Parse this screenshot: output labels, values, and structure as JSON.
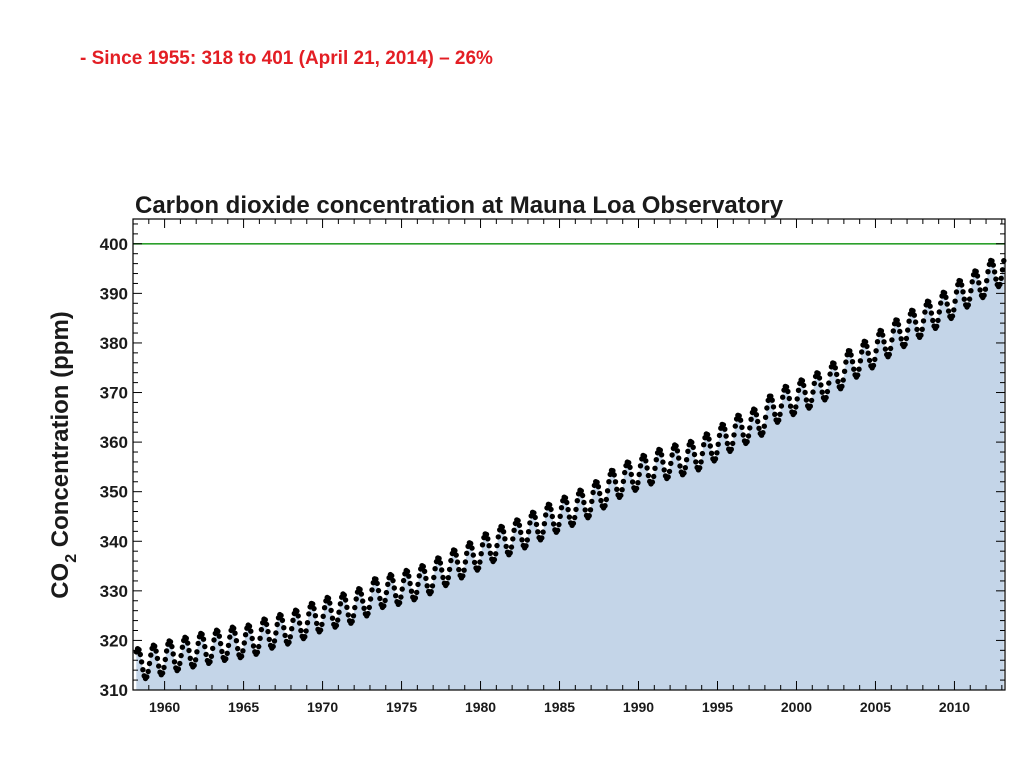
{
  "slide": {
    "caption": "- Since 1955: 318 to 401 (April 21, 2014) – 26%",
    "caption_color": "#e31e24"
  },
  "chart_data": {
    "type": "scatter",
    "title": "Carbon dioxide concentration at Mauna Loa Observatory",
    "ylabel_prefix": "CO",
    "ylabel_subscript": "2",
    "ylabel_suffix": " Concentration (ppm)",
    "xlabel": "",
    "xlim": [
      1958,
      2013.2
    ],
    "ylim": [
      310,
      405
    ],
    "x_ticks": [
      "1960",
      "1965",
      "1970",
      "1975",
      "1980",
      "1985",
      "1990",
      "1995",
      "2000",
      "2005",
      "2010"
    ],
    "y_ticks": [
      "310",
      "320",
      "330",
      "340",
      "350",
      "360",
      "370",
      "380",
      "390",
      "400"
    ],
    "reference_line": {
      "y": 400,
      "color": "#2ca02c"
    },
    "area_color": "#c4d5e8",
    "marker_color": "#000000",
    "series": [
      {
        "x": [
          1958.5,
          1959.5,
          1960.5,
          1961.5,
          1962.5,
          1963.5,
          1964.5,
          1965.5,
          1966.5,
          1967.5,
          1968.5,
          1969.5,
          1970.5,
          1971.5,
          1972.5,
          1973.5,
          1974.5,
          1975.5,
          1976.5,
          1977.5,
          1978.5,
          1979.5,
          1980.5,
          1981.5,
          1982.5,
          1983.5,
          1984.5,
          1985.5,
          1986.5,
          1987.5,
          1988.5,
          1989.5,
          1990.5,
          1991.5,
          1992.5,
          1993.5,
          1994.5,
          1995.5,
          1996.5,
          1997.5,
          1998.5,
          1999.5,
          2000.5,
          2001.5,
          2002.5,
          2003.5,
          2004.5,
          2005.5,
          2006.5,
          2007.5,
          2008.5,
          2009.5,
          2010.5,
          2011.5,
          2012.5
        ],
        "y": [
          315.3,
          316.0,
          316.9,
          317.6,
          318.4,
          319.0,
          319.6,
          320.0,
          321.4,
          322.2,
          323.1,
          324.6,
          325.7,
          326.3,
          327.5,
          329.7,
          330.2,
          331.1,
          332.1,
          333.8,
          335.4,
          336.8,
          338.7,
          340.1,
          341.4,
          343.0,
          344.6,
          346.0,
          347.4,
          349.2,
          351.6,
          353.1,
          354.4,
          355.6,
          356.4,
          357.1,
          358.8,
          360.8,
          362.6,
          363.7,
          366.7,
          368.4,
          369.6,
          371.1,
          373.2,
          375.8,
          377.5,
          379.8,
          381.9,
          383.8,
          385.6,
          387.4,
          389.9,
          391.7,
          393.9
        ],
        "seasonal_amplitude_ppm": 3.2
      }
    ]
  }
}
